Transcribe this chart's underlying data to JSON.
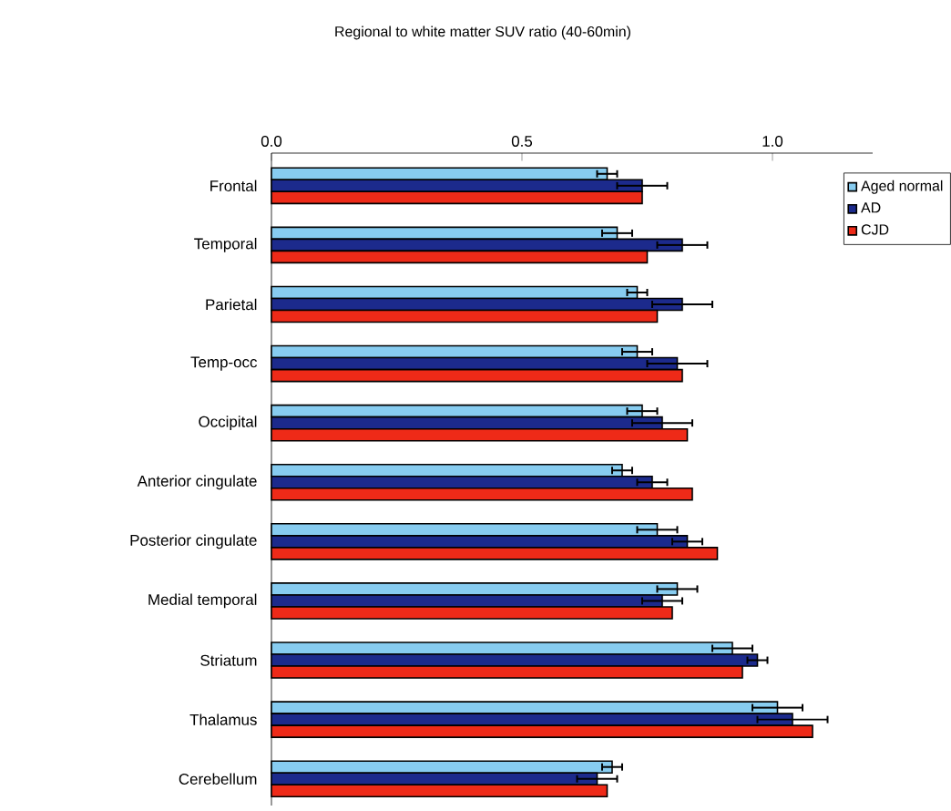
{
  "chart_data": {
    "type": "bar",
    "orientation": "horizontal",
    "title": "Regional to white matter SUV ratio (40-60min)",
    "categories": [
      "Frontal",
      "Temporal",
      "Parietal",
      "Temp-occ",
      "Occipital",
      "Anterior cingulate",
      "Posterior cingulate",
      "Medial temporal",
      "Striatum",
      "Thalamus",
      "Cerebellum"
    ],
    "series": [
      {
        "name": "Aged normal",
        "color": "#87ccf0",
        "values": [
          0.67,
          0.69,
          0.73,
          0.73,
          0.74,
          0.7,
          0.77,
          0.81,
          0.92,
          1.01,
          0.68
        ],
        "errors": [
          0.02,
          0.03,
          0.02,
          0.03,
          0.03,
          0.02,
          0.04,
          0.04,
          0.04,
          0.05,
          0.02
        ]
      },
      {
        "name": "AD",
        "color": "#1c2a8c",
        "values": [
          0.74,
          0.82,
          0.82,
          0.81,
          0.78,
          0.76,
          0.83,
          0.78,
          0.97,
          1.04,
          0.65
        ],
        "errors": [
          0.05,
          0.05,
          0.06,
          0.06,
          0.06,
          0.03,
          0.03,
          0.04,
          0.02,
          0.07,
          0.04
        ]
      },
      {
        "name": "CJD",
        "color": "#ee2a18",
        "values": [
          0.74,
          0.75,
          0.77,
          0.82,
          0.83,
          0.84,
          0.89,
          0.8,
          0.94,
          1.08,
          0.67
        ]
      }
    ],
    "xlim": [
      0,
      1.2
    ],
    "xticks": [
      {
        "value": 0,
        "label": "0.0"
      },
      {
        "value": 0.5,
        "label": "0.5"
      },
      {
        "value": 1,
        "label": "1.0"
      }
    ],
    "legend": "top right"
  }
}
